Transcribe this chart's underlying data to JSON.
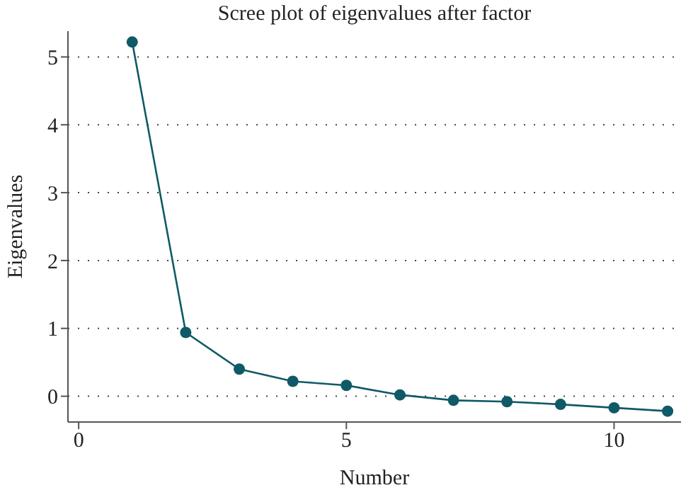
{
  "chart_data": {
    "type": "line",
    "title": "Scree plot of eigenvalues after factor",
    "xlabel": "Number",
    "ylabel": "Eigenvalues",
    "x": [
      1,
      2,
      3,
      4,
      5,
      6,
      7,
      8,
      9,
      10,
      11
    ],
    "series": [
      {
        "color": "#0f5a66",
        "values": [
          5.22,
          0.94,
          0.4,
          0.22,
          0.16,
          0.02,
          -0.06,
          -0.08,
          -0.12,
          -0.17,
          -0.22
        ]
      }
    ],
    "xlim": [
      -0.2,
      11.25
    ],
    "xticks": [
      0,
      5,
      10
    ],
    "ylim": [
      -0.38,
      5.38
    ],
    "yticks": [
      0,
      1,
      2,
      3,
      4,
      5
    ],
    "grid": "y",
    "marker": "circle",
    "line_style": "solid",
    "legend": false
  }
}
